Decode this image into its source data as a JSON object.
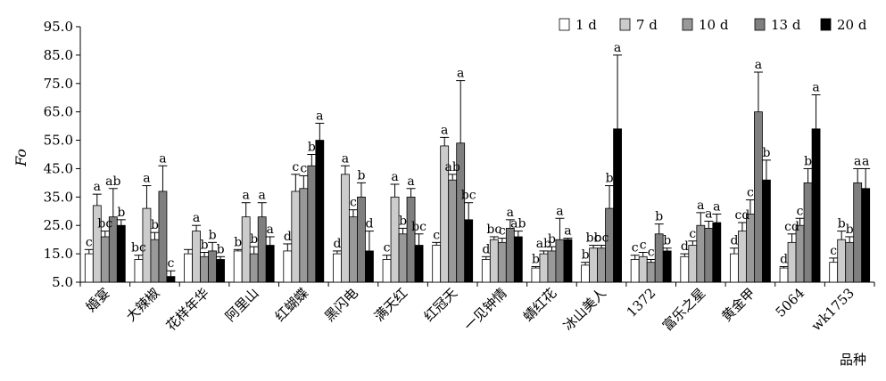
{
  "chart_data": {
    "type": "bar",
    "ylabel": "Fo",
    "xlabel": "品种",
    "ylim": [
      5.0,
      95.0
    ],
    "yticks": [
      "5.0",
      "15.0",
      "25.0",
      "35.0",
      "45.0",
      "55.0",
      "65.0",
      "75.0",
      "85.0",
      "95.0"
    ],
    "legend_position": "top-right",
    "colors": [
      "#ffffff",
      "#cccccc",
      "#999999",
      "#7f7f7f",
      "#000000"
    ],
    "categories": [
      "婚宴",
      "大辣椒",
      "花样年华",
      "阿里山",
      "红蝴蝶",
      "黑闪电",
      "满天红",
      "红冠天",
      "一见钟情",
      "蜻红花",
      "冰山美人",
      "1372",
      "富乐之星",
      "黄金甲",
      "5064",
      "wk1753"
    ],
    "series": [
      {
        "name": "1 d",
        "values": [
          15,
          13,
          15,
          16,
          16,
          15,
          13,
          18,
          13,
          10,
          11,
          13,
          14,
          15,
          10,
          12
        ],
        "errors": [
          1.5,
          1.5,
          1.5,
          0.5,
          2.5,
          1,
          1.5,
          1,
          1,
          0.5,
          1,
          1.5,
          1,
          2,
          0.5,
          1.5
        ],
        "labels": [
          "c",
          "bc",
          "",
          "b",
          "d",
          "d",
          "c",
          "c",
          "d",
          "b",
          "b",
          "c",
          "d",
          "d",
          "d",
          "c"
        ]
      },
      {
        "name": "7 d",
        "values": [
          32,
          31,
          23,
          28,
          37,
          43,
          35,
          53,
          20,
          15,
          17,
          14,
          18,
          23,
          19,
          20
        ],
        "errors": [
          4,
          8,
          2,
          5,
          6,
          3,
          4.5,
          3,
          1,
          1,
          1,
          1.5,
          1.5,
          3,
          3,
          3
        ],
        "labels": [
          "a",
          "a",
          "a",
          "a",
          "c",
          "a",
          "a",
          "a",
          "bc",
          "ab",
          "bc",
          "c",
          "c",
          "cd",
          "cd",
          "b"
        ]
      },
      {
        "name": "10 d",
        "values": [
          21,
          20,
          14,
          15,
          38,
          28,
          22,
          41,
          19,
          16,
          17,
          12,
          25,
          29,
          25,
          19
        ],
        "errors": [
          2,
          2.5,
          1.5,
          2.5,
          4.5,
          2.5,
          2,
          2,
          1.5,
          1.5,
          1,
          1,
          4.5,
          5,
          2.5,
          2
        ],
        "labels": [
          "bc",
          "b",
          "b",
          "b",
          "c",
          "c",
          "b",
          "ab",
          "c",
          "b",
          "bc",
          "c",
          "a",
          "c",
          "c",
          "b"
        ]
      },
      {
        "name": "13 d",
        "values": [
          28,
          37,
          16,
          28,
          46,
          35,
          35,
          54,
          24,
          20,
          31,
          22,
          24,
          65,
          40,
          40
        ],
        "errors": [
          10,
          9,
          3,
          5,
          4,
          5,
          3,
          22,
          3,
          7.5,
          8,
          3.5,
          2.5,
          14,
          5,
          5
        ],
        "labels": [
          "ab",
          "a",
          "b",
          "a",
          "b",
          "b",
          "a",
          "a",
          "a",
          "a",
          "b",
          "b",
          "a",
          "a",
          "b",
          "a"
        ]
      },
      {
        "name": "20 d",
        "values": [
          25,
          7,
          13,
          18,
          55,
          16,
          18,
          27,
          21,
          20,
          59,
          16,
          26,
          41,
          59,
          38
        ],
        "errors": [
          2,
          2,
          1,
          3,
          6,
          7,
          4,
          6,
          2,
          0.5,
          26,
          1,
          3,
          7,
          12,
          7
        ],
        "labels": [
          "b",
          "c",
          "b",
          "a",
          "a",
          "d",
          "bc",
          "bc",
          "ab",
          "a",
          "a",
          "b",
          "a",
          "b",
          "a",
          "a"
        ]
      }
    ]
  }
}
